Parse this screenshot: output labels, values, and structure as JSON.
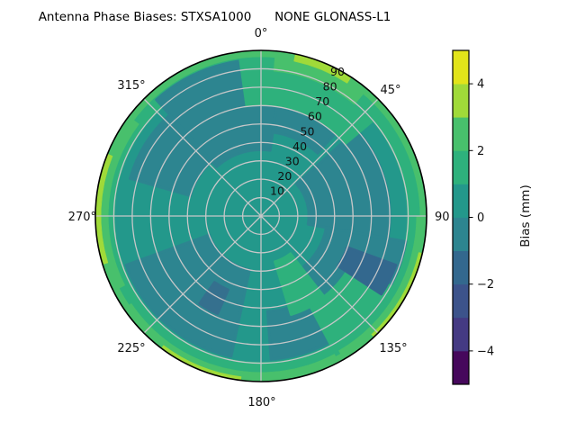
{
  "title": "Antenna Phase Biases: STXSA1000      NONE GLONASS-L1",
  "plot": {
    "azimuth_labels": [
      "0°",
      "45°",
      "90",
      "135°",
      "180°",
      "225°",
      "270°",
      "315°"
    ],
    "radial_tick_labels": [
      "10",
      "20",
      "30",
      "40",
      "50",
      "60",
      "70",
      "80",
      "90"
    ]
  },
  "colorbar": {
    "label": "Bias (mm)",
    "tick_labels": [
      "4",
      "2",
      "0",
      "−2",
      "−4"
    ],
    "tick_values": [
      4,
      2,
      0,
      -2,
      -4
    ],
    "range": [
      -5,
      5
    ]
  },
  "chart_data": {
    "type": "heatmap",
    "projection": "polar",
    "title": "Antenna Phase Biases: STXSA1000      NONE GLONASS-L1",
    "colorbar_label": "Bias (mm)",
    "colormap": "viridis (10 discrete bands)",
    "levels": [
      -5,
      -4,
      -3,
      -2,
      -1,
      0,
      1,
      2,
      3,
      4,
      5
    ],
    "band_colors_bottom_to_top": [
      "#46085c",
      "#443a83",
      "#3c538b",
      "#33688e",
      "#2d8590",
      "#23988b",
      "#2eb17c",
      "#48c06c",
      "#a0da39",
      "#e2e41a"
    ],
    "azimuth_ticks_deg": [
      0,
      45,
      90,
      135,
      180,
      225,
      270,
      315
    ],
    "radial_ticks": [
      10,
      20,
      30,
      40,
      50,
      60,
      70,
      80,
      90
    ],
    "radial_max": 90,
    "base_bias_mm": "0 to 1",
    "regions": [
      {
        "name": "base-disc",
        "bias_mm": "0 to 1",
        "color": "#23988b",
        "az": [
          0,
          360
        ],
        "r": [
          0,
          90
        ]
      },
      {
        "name": "outer-emerald-ring",
        "bias_mm": "1 to 2",
        "color": "#2eb17c",
        "az": [
          0,
          360
        ],
        "r": [
          79.5,
          90
        ]
      },
      {
        "name": "upper-left-low",
        "bias_mm": "-1 to 0",
        "color": "#2d8590",
        "az": [
          318,
          368
        ],
        "r": [
          36,
          85
        ]
      },
      {
        "name": "top-right-low",
        "bias_mm": "-1 to 0",
        "color": "#2d8590",
        "az": [
          8,
          42
        ],
        "r": [
          46,
          76
        ]
      },
      {
        "name": "right-low",
        "bias_mm": "-1 to 0",
        "color": "#2d8590",
        "az": [
          48,
          100
        ],
        "r": [
          26,
          70
        ]
      },
      {
        "name": "lower-right-low",
        "bias_mm": "-1 to 0",
        "color": "#2d8590",
        "az": [
          100,
          142
        ],
        "r": [
          36,
          80
        ]
      },
      {
        "name": "bottom-right-low",
        "bias_mm": "-1 to 0",
        "color": "#2d8590",
        "az": [
          142,
          176
        ],
        "r": [
          52,
          78
        ]
      },
      {
        "name": "lower-left-low",
        "bias_mm": "-1 to 0",
        "color": "#2d8590",
        "az": [
          192,
          250
        ],
        "r": [
          30,
          78
        ]
      },
      {
        "name": "left-low",
        "bias_mm": "-1 to 0",
        "color": "#2d8590",
        "az": [
          286,
          318
        ],
        "r": [
          40,
          74
        ]
      },
      {
        "name": "top-right-emerald",
        "bias_mm": "1 to 2",
        "color": "#2eb17c",
        "az": [
          352,
          410
        ],
        "r": [
          60,
          90
        ]
      },
      {
        "name": "lower-right-emerald",
        "bias_mm": "1 to 2",
        "color": "#2eb17c",
        "az": [
          118,
          152
        ],
        "r": [
          55,
          90
        ]
      },
      {
        "name": "inner-south-emerald",
        "bias_mm": "1 to 2",
        "color": "#2eb17c",
        "az": [
          142,
          163
        ],
        "r": [
          26,
          56
        ]
      },
      {
        "name": "lower-right-deep-blue",
        "bias_mm": "-2 to -1",
        "color": "#33688e",
        "az": [
          110,
          123
        ],
        "r": [
          50,
          78
        ]
      },
      {
        "name": "lower-left-deep-blue",
        "bias_mm": "-2 to -1",
        "color": "#35708e",
        "az": [
          204,
          215
        ],
        "r": [
          44,
          58
        ]
      },
      {
        "name": "rim-green-ring",
        "bias_mm": "2 to 3",
        "color": "#48c06c",
        "az": [
          0,
          360
        ],
        "r": [
          86.5,
          90
        ]
      },
      {
        "name": "rim-green-top-right",
        "bias_mm": "2 to 3",
        "color": "#48c06c",
        "az": [
          5,
          40
        ],
        "r": [
          79,
          90
        ]
      },
      {
        "name": "rim-green-left",
        "bias_mm": "2 to 3",
        "color": "#48c06c",
        "az": [
          243,
          307
        ],
        "r": [
          83,
          90
        ]
      },
      {
        "name": "rim-green-right",
        "bias_mm": "2 to 3",
        "color": "#48c06c",
        "az": [
          90,
          150
        ],
        "r": [
          84.5,
          90
        ]
      },
      {
        "name": "rim-green-bottom",
        "bias_mm": "2 to 3",
        "color": "#48c06c",
        "az": [
          152,
          236
        ],
        "r": [
          85,
          90
        ]
      },
      {
        "name": "rim-yellow-top-right",
        "bias_mm": "3 to 4",
        "color": "#a0da39",
        "az": [
          12,
          33
        ],
        "r": [
          86,
          90
        ]
      },
      {
        "name": "rim-yellow-right",
        "bias_mm": "3 to 4",
        "color": "#a0da39",
        "az": [
          103,
          137
        ],
        "r": [
          88,
          90
        ]
      },
      {
        "name": "rim-yellow-bottom",
        "bias_mm": "3 to 4",
        "color": "#a0da39",
        "az": [
          187,
          217
        ],
        "r": [
          88,
          90
        ]
      },
      {
        "name": "rim-yellow-left",
        "bias_mm": "3 to 4",
        "color": "#a0da39",
        "az": [
          253,
          292
        ],
        "r": [
          87,
          90
        ]
      }
    ]
  }
}
